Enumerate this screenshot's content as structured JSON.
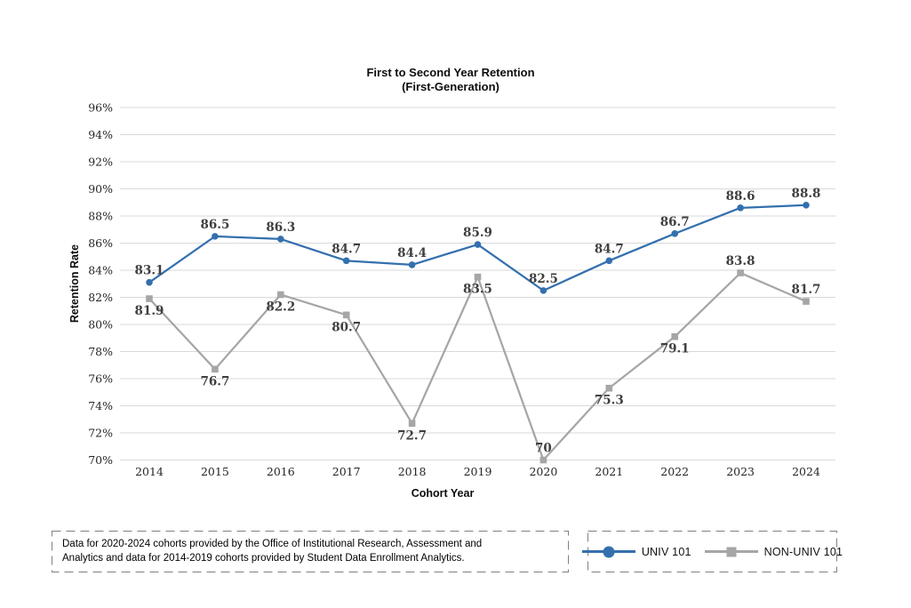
{
  "title": {
    "line1": "First to Second Year Retention",
    "line2": "(First-Generation)"
  },
  "chart_data": {
    "type": "line",
    "x": [
      2014,
      2015,
      2016,
      2017,
      2018,
      2019,
      2020,
      2021,
      2022,
      2023,
      2024
    ],
    "series": [
      {
        "name": "UNIV 101",
        "color": "#3470AE",
        "marker": "circle",
        "values": [
          83.1,
          86.5,
          86.3,
          84.7,
          84.4,
          85.9,
          82.5,
          84.7,
          86.7,
          88.6,
          88.8
        ],
        "label_positions": [
          "above",
          "above",
          "above",
          "above",
          "above",
          "above",
          "above",
          "above",
          "above",
          "above",
          "above"
        ]
      },
      {
        "name": "NON-UNIV 101",
        "color": "#A6A6A6",
        "marker": "square",
        "values": [
          81.9,
          76.7,
          82.2,
          80.7,
          72.7,
          83.5,
          70,
          75.3,
          79.1,
          83.8,
          81.7
        ],
        "label_positions": [
          "below",
          "below",
          "below",
          "below",
          "below",
          "below",
          "above",
          "below",
          "below",
          "above",
          "above"
        ]
      }
    ],
    "xlabel": "Cohort Year",
    "ylabel": "Retention Rate",
    "ylim": [
      70,
      96
    ],
    "ytick_step": 2,
    "ytick_suffix": "%",
    "grid": "horizontal",
    "gridline_color": "#D9D9D9",
    "data_label_color": "#3F3F3F",
    "tick_label_color": "#262626",
    "legend_position": "bottom-right"
  },
  "footnote": {
    "line1": "Data for 2020-2024 cohorts provided by the Office of Institutional Research, Assessment and",
    "line2": "Analytics and data for 2014-2019 cohorts provided by Student Data Enrollment Analytics."
  },
  "legend": {
    "items": [
      {
        "label": "UNIV 101",
        "marker": "circle"
      },
      {
        "label": "NON-UNIV 101",
        "marker": "square"
      }
    ]
  }
}
